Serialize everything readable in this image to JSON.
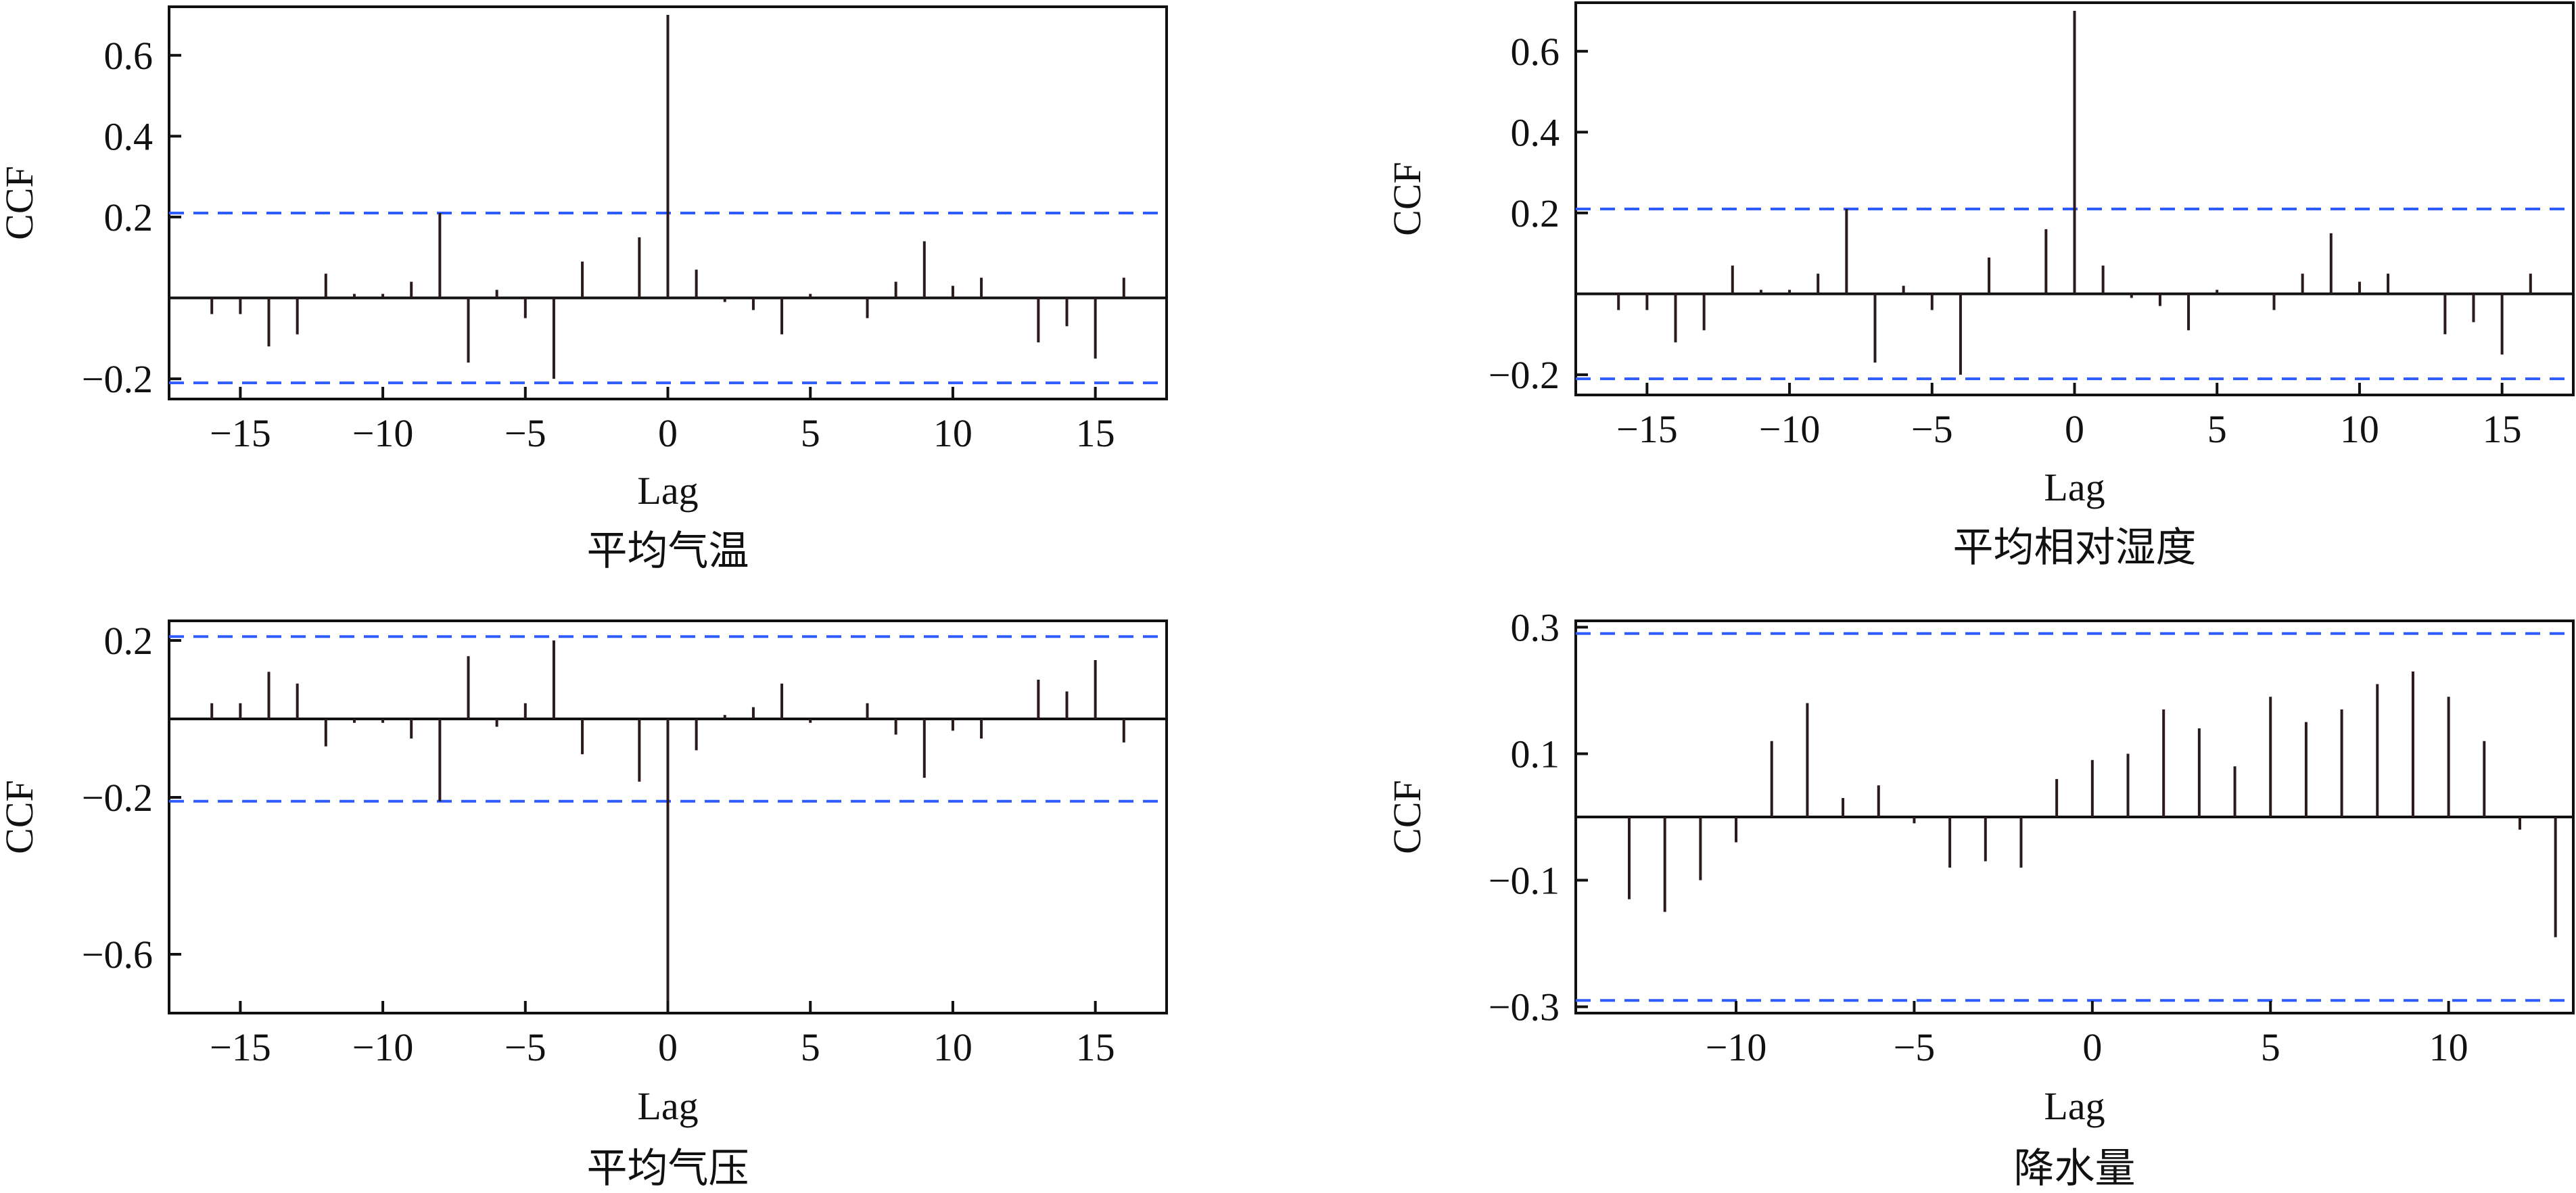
{
  "chart_data": [
    {
      "type": "bar",
      "caption": "平均气温",
      "xlabel": "Lag",
      "ylabel": "CCF",
      "xlim": [
        -17.5,
        17.5
      ],
      "ylim": [
        -0.25,
        0.72
      ],
      "xticks": [
        -15,
        -10,
        -5,
        0,
        5,
        10,
        15
      ],
      "xtick_labels": [
        "−15",
        "−10",
        "−5",
        "0",
        "5",
        "10",
        "15"
      ],
      "yticks": [
        -0.2,
        0.2,
        0.4,
        0.6
      ],
      "ytick_labels": [
        "−0.2",
        "0.2",
        "0.4",
        "0.6"
      ],
      "confidence_band": [
        -0.21,
        0.21
      ],
      "x": [
        -16,
        -15,
        -14,
        -13,
        -12,
        -11,
        -10,
        -9,
        -8,
        -7,
        -6,
        -5,
        -4,
        -3,
        -2,
        -1,
        0,
        1,
        2,
        3,
        4,
        5,
        6,
        7,
        8,
        9,
        10,
        11,
        12,
        13,
        14,
        15,
        16
      ],
      "values": [
        -0.04,
        -0.04,
        -0.12,
        -0.09,
        0.06,
        0.01,
        0.01,
        0.04,
        0.21,
        -0.16,
        0.02,
        -0.05,
        -0.2,
        0.09,
        0.0,
        0.15,
        0.7,
        0.07,
        -0.01,
        -0.03,
        -0.09,
        0.01,
        0.0,
        -0.05,
        0.04,
        0.14,
        0.03,
        0.05,
        0.0,
        -0.11,
        -0.07,
        -0.15,
        0.05
      ]
    },
    {
      "type": "bar",
      "caption": "平均相对湿度",
      "xlabel": "Lag",
      "ylabel": "CCF",
      "xlim": [
        -17.5,
        17.5
      ],
      "ylim": [
        -0.25,
        0.72
      ],
      "xticks": [
        -15,
        -10,
        -5,
        0,
        5,
        10,
        15
      ],
      "xtick_labels": [
        "−15",
        "−10",
        "−5",
        "0",
        "5",
        "10",
        "15"
      ],
      "yticks": [
        -0.2,
        0.2,
        0.4,
        0.6
      ],
      "ytick_labels": [
        "−0.2",
        "0.2",
        "0.4",
        "0.6"
      ],
      "confidence_band": [
        -0.21,
        0.21
      ],
      "x": [
        -16,
        -15,
        -14,
        -13,
        -12,
        -11,
        -10,
        -9,
        -8,
        -7,
        -6,
        -5,
        -4,
        -3,
        -2,
        -1,
        0,
        1,
        2,
        3,
        4,
        5,
        6,
        7,
        8,
        9,
        10,
        11,
        12,
        13,
        14,
        15,
        16
      ],
      "values": [
        -0.04,
        -0.04,
        -0.12,
        -0.09,
        0.07,
        0.01,
        0.01,
        0.05,
        0.21,
        -0.17,
        0.02,
        -0.04,
        -0.2,
        0.09,
        0.0,
        0.16,
        0.7,
        0.07,
        -0.01,
        -0.03,
        -0.09,
        0.01,
        0.0,
        -0.04,
        0.05,
        0.15,
        0.03,
        0.05,
        0.0,
        -0.1,
        -0.07,
        -0.15,
        0.05
      ]
    },
    {
      "type": "bar",
      "caption": "平均气压",
      "xlabel": "Lag",
      "ylabel": "CCF",
      "xlim": [
        -17.5,
        17.5
      ],
      "ylim": [
        -0.75,
        0.25
      ],
      "xticks": [
        -15,
        -10,
        -5,
        0,
        5,
        10,
        15
      ],
      "xtick_labels": [
        "−15",
        "−10",
        "−5",
        "0",
        "5",
        "10",
        "15"
      ],
      "yticks": [
        -0.6,
        -0.2,
        0.2
      ],
      "ytick_labels": [
        "−0.6",
        "−0.2",
        "0.2"
      ],
      "confidence_band": [
        -0.21,
        0.21
      ],
      "x": [
        -16,
        -15,
        -14,
        -13,
        -12,
        -11,
        -10,
        -9,
        -8,
        -7,
        -6,
        -5,
        -4,
        -3,
        -2,
        -1,
        0,
        1,
        2,
        3,
        4,
        5,
        6,
        7,
        8,
        9,
        10,
        11,
        12,
        13,
        14,
        15,
        16
      ],
      "values": [
        0.04,
        0.04,
        0.12,
        0.09,
        -0.07,
        -0.01,
        -0.01,
        -0.05,
        -0.21,
        0.16,
        -0.02,
        0.04,
        0.2,
        -0.09,
        0.0,
        -0.16,
        -0.72,
        -0.08,
        0.01,
        0.03,
        0.09,
        -0.01,
        0.0,
        0.04,
        -0.04,
        -0.15,
        -0.03,
        -0.05,
        0.0,
        0.1,
        0.07,
        0.15,
        -0.06
      ]
    },
    {
      "type": "bar",
      "caption": "降水量",
      "xlabel": "Lag",
      "ylabel": "CCF",
      "xlim": [
        -14.5,
        13.5
      ],
      "ylim": [
        -0.31,
        0.31
      ],
      "xticks": [
        -10,
        -5,
        0,
        5,
        10
      ],
      "xtick_labels": [
        "−10",
        "−5",
        "0",
        "5",
        "10"
      ],
      "yticks": [
        -0.3,
        -0.1,
        0.1,
        0.3
      ],
      "ytick_labels": [
        "−0.3",
        "−0.1",
        "0.1",
        "0.3"
      ],
      "confidence_band": [
        -0.29,
        0.29
      ],
      "x": [
        -13,
        -12,
        -11,
        -10,
        -9,
        -8,
        -7,
        -6,
        -5,
        -4,
        -3,
        -2,
        -1,
        0,
        1,
        2,
        3,
        4,
        5,
        6,
        7,
        8,
        9,
        10,
        11,
        12,
        13
      ],
      "values": [
        -0.13,
        -0.15,
        -0.1,
        -0.04,
        0.12,
        0.18,
        0.03,
        0.05,
        -0.01,
        -0.08,
        -0.07,
        -0.08,
        0.06,
        0.09,
        0.1,
        0.17,
        0.14,
        0.08,
        0.19,
        0.15,
        0.17,
        0.21,
        0.23,
        0.19,
        0.12,
        -0.02,
        -0.19
      ]
    }
  ],
  "colors": {
    "bars": "#2a1a1a",
    "confidence_band": "#2f5cff",
    "axes": "#111111"
  }
}
